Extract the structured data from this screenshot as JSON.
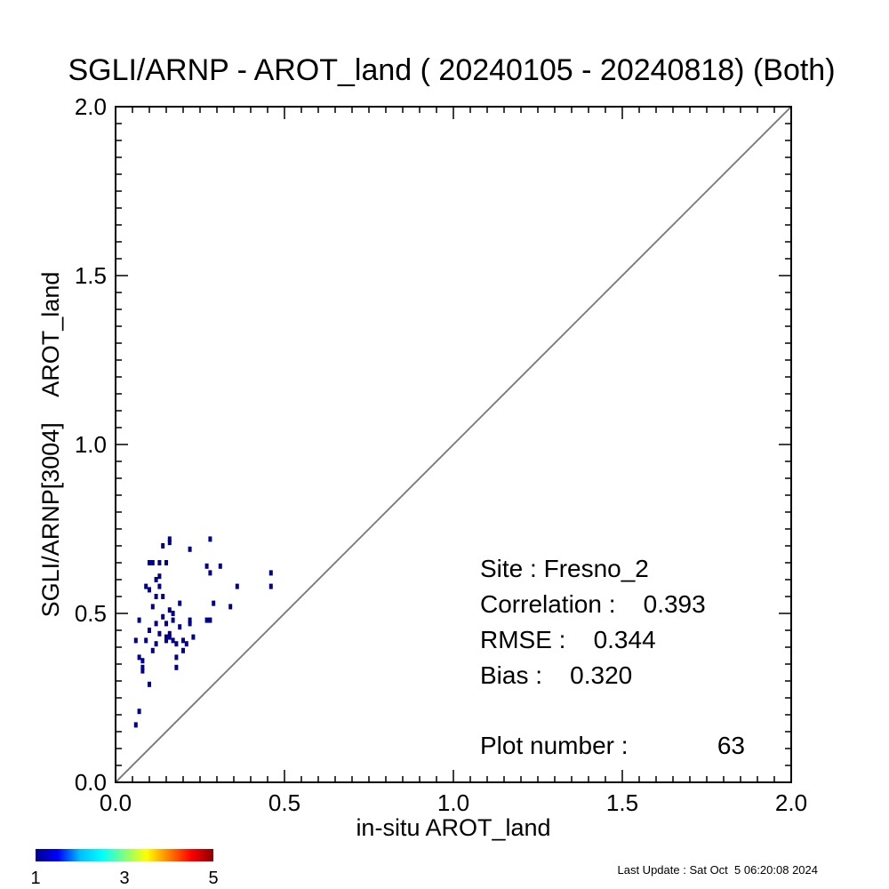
{
  "chart_data": {
    "type": "scatter",
    "title": "SGLI/ARNP - AROT_land ( 20240105 - 20240818) (Both)",
    "xlabel": "in-situ AROT_land",
    "ylabel": "SGLI/ARNP[3004]    AROT_land",
    "xlim": [
      0.0,
      2.0
    ],
    "ylim": [
      0.0,
      2.0
    ],
    "x_ticks": [
      "0.0",
      "0.5",
      "1.0",
      "1.5",
      "2.0"
    ],
    "y_ticks": [
      "0.0",
      "0.5",
      "1.0",
      "1.5",
      "2.0"
    ],
    "grid": false,
    "one_to_one_line": true,
    "point_color": "#00008b",
    "line_color": "#808080",
    "stats": {
      "site": "Site : Fresno_2",
      "correlation": "Correlation :    0.393",
      "rmse": "RMSE :    0.344",
      "bias": "Bias :    0.320",
      "plot_number_label": "Plot number :",
      "plot_number_value": "63"
    },
    "colorbar": {
      "min_label": "1",
      "mid_label": "3",
      "max_label": "5",
      "colors": [
        "#00008b",
        "#0000ff",
        "#00bfff",
        "#00ffff",
        "#7fff7f",
        "#ffff00",
        "#ff7f00",
        "#ff0000",
        "#8b0000"
      ]
    },
    "points": [
      [
        0.06,
        0.17
      ],
      [
        0.07,
        0.21
      ],
      [
        0.06,
        0.42
      ],
      [
        0.07,
        0.48
      ],
      [
        0.07,
        0.37
      ],
      [
        0.08,
        0.36
      ],
      [
        0.08,
        0.33
      ],
      [
        0.08,
        0.34
      ],
      [
        0.09,
        0.58
      ],
      [
        0.09,
        0.42
      ],
      [
        0.1,
        0.57
      ],
      [
        0.1,
        0.45
      ],
      [
        0.1,
        0.29
      ],
      [
        0.1,
        0.65
      ],
      [
        0.11,
        0.39
      ],
      [
        0.11,
        0.52
      ],
      [
        0.11,
        0.65
      ],
      [
        0.12,
        0.47
      ],
      [
        0.12,
        0.55
      ],
      [
        0.12,
        0.41
      ],
      [
        0.13,
        0.58
      ],
      [
        0.13,
        0.61
      ],
      [
        0.13,
        0.65
      ],
      [
        0.13,
        0.44
      ],
      [
        0.14,
        0.49
      ],
      [
        0.14,
        0.55
      ],
      [
        0.14,
        0.7
      ],
      [
        0.15,
        0.65
      ],
      [
        0.15,
        0.42
      ],
      [
        0.15,
        0.43
      ],
      [
        0.15,
        0.47
      ],
      [
        0.16,
        0.71
      ],
      [
        0.16,
        0.72
      ],
      [
        0.16,
        0.51
      ],
      [
        0.16,
        0.44
      ],
      [
        0.16,
        0.43
      ],
      [
        0.17,
        0.5
      ],
      [
        0.17,
        0.48
      ],
      [
        0.17,
        0.42
      ],
      [
        0.18,
        0.34
      ],
      [
        0.18,
        0.37
      ],
      [
        0.19,
        0.53
      ],
      [
        0.19,
        0.46
      ],
      [
        0.2,
        0.39
      ],
      [
        0.21,
        0.41
      ],
      [
        0.22,
        0.47
      ],
      [
        0.22,
        0.48
      ],
      [
        0.22,
        0.69
      ],
      [
        0.23,
        0.43
      ],
      [
        0.27,
        0.64
      ],
      [
        0.27,
        0.48
      ],
      [
        0.28,
        0.48
      ],
      [
        0.28,
        0.72
      ],
      [
        0.28,
        0.62
      ],
      [
        0.29,
        0.53
      ],
      [
        0.31,
        0.64
      ],
      [
        0.34,
        0.52
      ],
      [
        0.36,
        0.58
      ],
      [
        0.46,
        0.62
      ],
      [
        0.46,
        0.58
      ],
      [
        0.12,
        0.6
      ],
      [
        0.18,
        0.41
      ],
      [
        0.2,
        0.42
      ]
    ]
  },
  "footer": {
    "last_update": "Last Update : Sat Oct  5 06:20:08 2024"
  }
}
